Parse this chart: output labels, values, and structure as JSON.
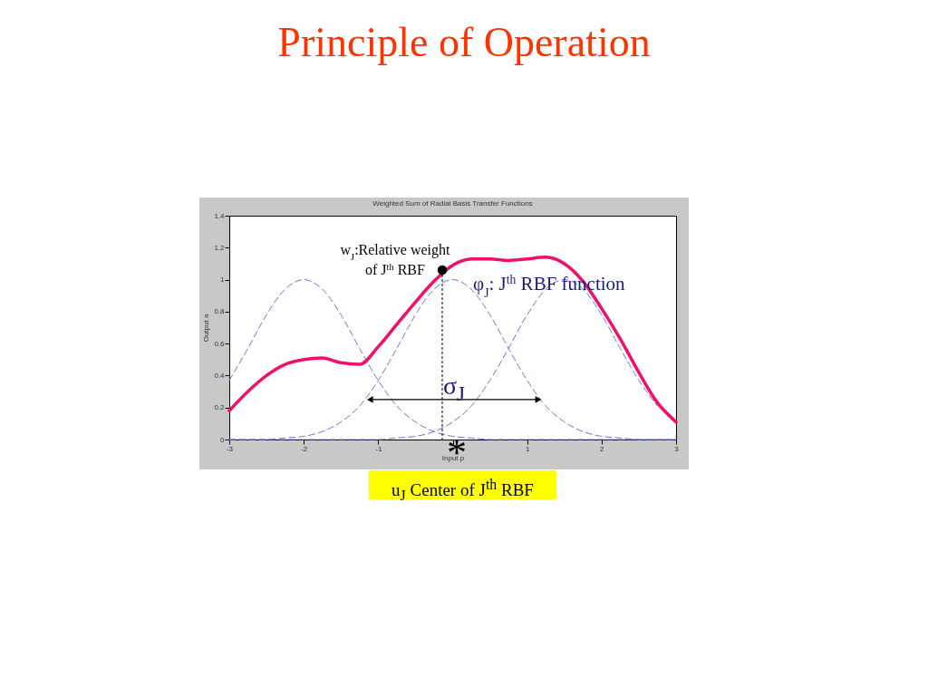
{
  "chart_data": {
    "type": "line",
    "title": "Principle of Operation",
    "subtitle": "Weighted Sum of Radial Basis Transfer Functions",
    "xlabel": "Input p",
    "ylabel": "Output a",
    "x": [
      -3,
      -2.75,
      -2.5,
      -2.25,
      -2,
      -1.75,
      -1.5,
      -1.25,
      -1,
      -0.75,
      -0.5,
      -0.25,
      0,
      0.25,
      0.5,
      0.75,
      1,
      1.25,
      1.5,
      1.75,
      2,
      2.25,
      2.5,
      2.75,
      3
    ],
    "series": [
      {
        "color": "#7070e0",
        "line_style": "dashed",
        "values": [
          0.37,
          0.57,
          0.78,
          0.94,
          1,
          0.94,
          0.78,
          0.57,
          0.37,
          0.21,
          0.11,
          0.05,
          0.02,
          0.01,
          0,
          0,
          0,
          0,
          0,
          0,
          0,
          0,
          0,
          0,
          0
        ]
      },
      {
        "color": "#7070e0",
        "line_style": "dashed",
        "values": [
          0,
          0,
          0,
          0.01,
          0.02,
          0.05,
          0.11,
          0.21,
          0.37,
          0.57,
          0.78,
          0.94,
          1,
          0.94,
          0.78,
          0.57,
          0.37,
          0.21,
          0.11,
          0.05,
          0.02,
          0.01,
          0,
          0,
          0
        ]
      },
      {
        "color": "#7070e0",
        "line_style": "dashed",
        "values": [
          0,
          0,
          0,
          0,
          0,
          0,
          0,
          0,
          0,
          0.01,
          0.02,
          0.05,
          0.11,
          0.21,
          0.37,
          0.57,
          0.78,
          0.94,
          1,
          0.94,
          0.78,
          0.57,
          0.37,
          0.21,
          null
        ]
      },
      {
        "color": "#f0106a",
        "line_style": "solid",
        "values": [
          0.18,
          0.3,
          0.4,
          0.47,
          0.5,
          0.51,
          0.48,
          0.47,
          0.58,
          0.72,
          0.86,
          0.99,
          1.09,
          1.13,
          1.13,
          1.12,
          1.13,
          1.14,
          1.1,
          0.99,
          0.82,
          0.63,
          0.42,
          0.23,
          0.11
        ]
      }
    ],
    "xlim": [
      -3,
      3
    ],
    "xticks": [
      -3,
      -2,
      -1,
      {
        "value": 0,
        "label": null
      },
      1,
      2,
      3
    ],
    "ylim": [
      0,
      1.4
    ],
    "yticks": [
      0,
      0.2,
      0.4,
      0.6,
      0.8,
      1,
      1.2,
      1.4
    ],
    "grid": false,
    "annotations": [
      {
        "text": "w$_{J}$:Relative weight\nof J$^{th}$ RBF",
        "x": -0.14,
        "y": 1.06
      },
      {
        "text": "φ$_{J}$: J$^{th}$ RBF function",
        "x": 0.25,
        "y": 0.97
      },
      "σ$_{J}$",
      {
        "text": "*",
        "x": 0.03,
        "y": 0
      },
      "u$_{J}$ Center of J$^{th}$ RBF"
    ]
  }
}
